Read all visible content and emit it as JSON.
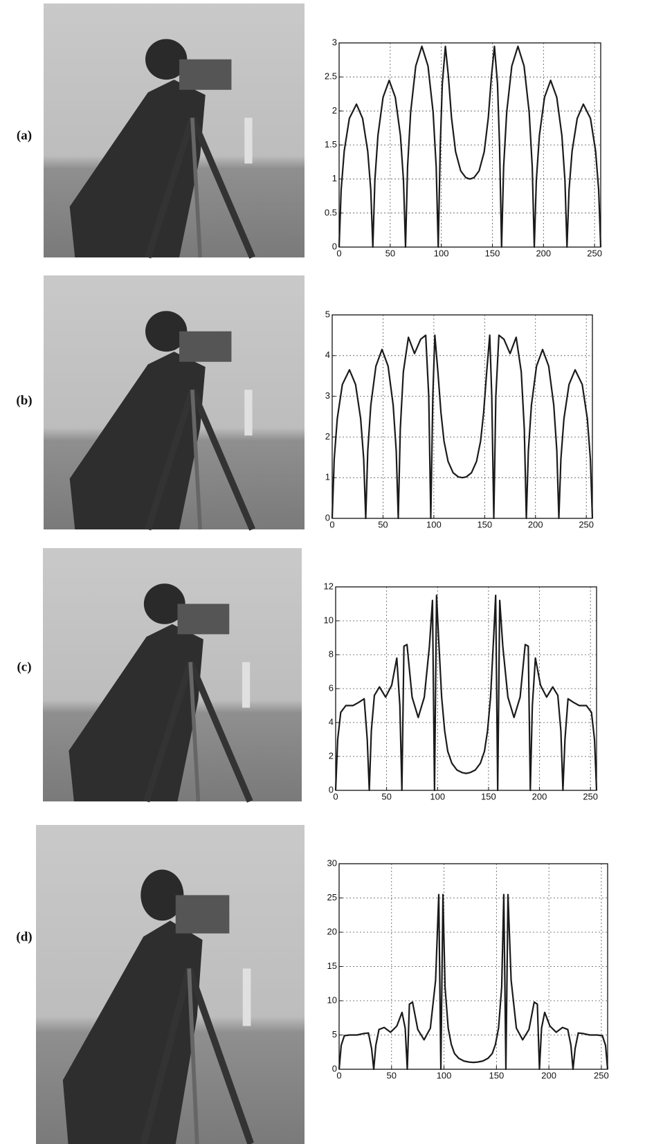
{
  "labels": [
    "(a)",
    "(b)",
    "(c)",
    "(d)"
  ],
  "chart_data": [
    {
      "type": "line",
      "color": "#1a1a1a",
      "grid": true,
      "x": [
        0,
        2,
        5,
        10,
        17,
        23,
        28,
        31,
        33,
        35,
        38,
        43,
        49,
        55,
        60,
        63,
        65,
        67,
        70,
        75,
        81,
        87,
        92,
        95,
        97,
        99,
        101,
        104,
        107,
        110,
        114,
        119,
        124,
        128,
        132,
        137,
        142,
        146,
        149,
        152,
        155,
        157,
        159,
        161,
        164,
        169,
        175,
        181,
        186,
        189,
        191,
        193,
        196,
        201,
        207,
        213,
        218,
        221,
        223,
        225,
        228,
        233,
        239,
        246,
        251,
        254,
        256
      ],
      "values": [
        0,
        0.84,
        1.41,
        1.89,
        2.1,
        1.89,
        1.41,
        0.84,
        0,
        0.98,
        1.64,
        2.2,
        2.45,
        2.2,
        1.64,
        0.98,
        0,
        1.18,
        1.98,
        2.66,
        2.95,
        2.66,
        1.98,
        1.18,
        0,
        1.5,
        2.4,
        2.95,
        2.5,
        1.9,
        1.4,
        1.12,
        1.02,
        1.0,
        1.02,
        1.12,
        1.4,
        1.9,
        2.5,
        2.95,
        2.4,
        1.5,
        0,
        1.18,
        1.98,
        2.66,
        2.95,
        2.66,
        1.98,
        1.18,
        0,
        0.98,
        1.64,
        2.2,
        2.45,
        2.2,
        1.64,
        0.98,
        0,
        0.84,
        1.41,
        1.89,
        2.1,
        1.89,
        1.41,
        0.84,
        0
      ],
      "xlim": [
        0,
        256
      ],
      "ylim": [
        0,
        3
      ],
      "xticks": [
        0,
        50,
        100,
        150,
        200,
        250
      ],
      "yticks": [
        0,
        0.5,
        1,
        1.5,
        2,
        2.5,
        3
      ]
    },
    {
      "type": "line",
      "color": "#1a1a1a",
      "grid": true,
      "x": [
        0,
        2,
        5,
        10,
        17,
        23,
        28,
        31,
        33,
        35,
        38,
        43,
        49,
        55,
        60,
        63,
        65,
        67,
        70,
        75,
        81,
        87,
        92,
        95,
        97,
        99,
        101,
        104,
        107,
        110,
        114,
        119,
        124,
        128,
        132,
        137,
        142,
        146,
        149,
        152,
        155,
        157,
        159,
        161,
        164,
        169,
        175,
        181,
        186,
        189,
        191,
        193,
        196,
        201,
        207,
        213,
        218,
        221,
        223,
        225,
        228,
        233,
        239,
        246,
        251,
        254,
        256
      ],
      "values": [
        0,
        1.46,
        2.45,
        3.29,
        3.65,
        3.29,
        2.45,
        1.46,
        0,
        1.66,
        2.78,
        3.74,
        4.15,
        3.74,
        2.78,
        1.66,
        0,
        2.2,
        3.6,
        4.45,
        4.05,
        4.4,
        4.5,
        3.0,
        0,
        3.0,
        4.5,
        3.6,
        2.6,
        1.9,
        1.4,
        1.12,
        1.02,
        1.0,
        1.02,
        1.12,
        1.4,
        1.9,
        2.6,
        3.6,
        4.5,
        3.0,
        0,
        3.0,
        4.5,
        4.4,
        4.05,
        4.45,
        3.6,
        2.2,
        0,
        1.66,
        2.78,
        3.74,
        4.15,
        3.74,
        2.78,
        1.66,
        0,
        1.46,
        2.45,
        3.29,
        3.65,
        3.29,
        2.45,
        1.46,
        0
      ],
      "xlim": [
        0,
        256
      ],
      "ylim": [
        0,
        5
      ],
      "xticks": [
        0,
        50,
        100,
        150,
        200,
        250
      ],
      "yticks": [
        0,
        1,
        2,
        3,
        4,
        5
      ]
    },
    {
      "type": "line",
      "color": "#1a1a1a",
      "grid": true,
      "x": [
        0,
        2,
        5,
        10,
        17,
        23,
        28,
        31,
        33,
        35,
        38,
        43,
        49,
        55,
        60,
        63,
        65,
        67,
        70,
        75,
        81,
        87,
        92,
        95,
        97,
        99,
        101,
        104,
        107,
        110,
        114,
        119,
        124,
        128,
        132,
        137,
        142,
        146,
        149,
        152,
        155,
        157,
        159,
        161,
        164,
        169,
        175,
        181,
        186,
        189,
        191,
        193,
        196,
        201,
        207,
        213,
        218,
        221,
        223,
        225,
        228,
        233,
        239,
        246,
        251,
        254,
        256
      ],
      "values": [
        0,
        3.0,
        4.6,
        5.0,
        5.0,
        5.2,
        5.4,
        3.0,
        0,
        3.5,
        5.6,
        6.1,
        5.5,
        6.2,
        7.8,
        5.0,
        0,
        8.5,
        8.6,
        5.5,
        4.3,
        5.5,
        8.5,
        11.2,
        0,
        11.5,
        9.0,
        5.5,
        3.5,
        2.3,
        1.6,
        1.2,
        1.05,
        1.0,
        1.05,
        1.2,
        1.6,
        2.3,
        3.5,
        5.5,
        9.0,
        11.5,
        0,
        11.2,
        8.5,
        5.5,
        4.3,
        5.5,
        8.6,
        8.5,
        0,
        5.0,
        7.8,
        6.2,
        5.5,
        6.1,
        5.6,
        3.5,
        0,
        3.0,
        5.4,
        5.2,
        5.0,
        5.0,
        4.6,
        3.0,
        0
      ],
      "xlim": [
        0,
        256
      ],
      "ylim": [
        0,
        12
      ],
      "xticks": [
        0,
        50,
        100,
        150,
        200,
        250
      ],
      "yticks": [
        0,
        2,
        4,
        6,
        8,
        10,
        12
      ]
    },
    {
      "type": "line",
      "color": "#1a1a1a",
      "grid": true,
      "x": [
        0,
        2,
        5,
        10,
        17,
        23,
        28,
        31,
        33,
        35,
        38,
        43,
        49,
        55,
        60,
        63,
        65,
        67,
        70,
        75,
        81,
        87,
        92,
        95,
        97,
        99,
        101,
        104,
        107,
        110,
        114,
        119,
        124,
        128,
        132,
        137,
        142,
        146,
        149,
        152,
        155,
        157,
        159,
        161,
        164,
        169,
        175,
        181,
        186,
        189,
        191,
        193,
        196,
        201,
        207,
        213,
        218,
        221,
        223,
        225,
        228,
        233,
        239,
        246,
        251,
        254,
        256
      ],
      "values": [
        0,
        3.5,
        4.9,
        5.0,
        5.0,
        5.2,
        5.3,
        3.0,
        0,
        3.5,
        5.8,
        6.1,
        5.4,
        6.3,
        8.3,
        6.0,
        0,
        9.5,
        9.8,
        5.8,
        4.3,
        6.0,
        13,
        25.5,
        0,
        25.5,
        12,
        6,
        3.6,
        2.3,
        1.6,
        1.2,
        1.05,
        1.0,
        1.05,
        1.2,
        1.6,
        2.3,
        3.6,
        6,
        12,
        25.5,
        0,
        25.5,
        13,
        6.0,
        4.3,
        5.8,
        9.8,
        9.5,
        0,
        6.0,
        8.3,
        6.3,
        5.4,
        6.1,
        5.8,
        3.5,
        0,
        3.0,
        5.3,
        5.2,
        5.0,
        5.0,
        4.9,
        3.5,
        0
      ],
      "xlim": [
        0,
        256
      ],
      "ylim": [
        0,
        30
      ],
      "xticks": [
        0,
        50,
        100,
        150,
        200,
        250
      ],
      "yticks": [
        0,
        5,
        10,
        15,
        20,
        25,
        30
      ]
    }
  ]
}
